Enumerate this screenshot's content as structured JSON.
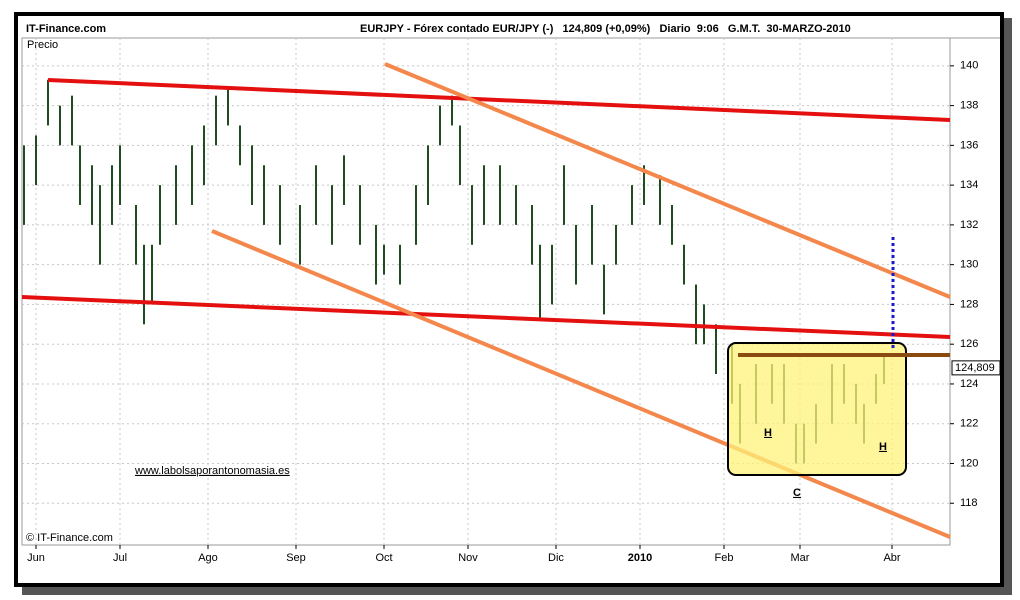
{
  "chart_data": {
    "type": "ohlc",
    "site": "IT-Finance.com",
    "title": "EURJPY - Fórex contado EUR/JPY (-)   124,809 (+0,09%)   Diario  9:06   G.M.T.  30-MARZO-2010",
    "y_label": "Precio",
    "copyright": "© IT-Finance.com",
    "watermark": "www.labolsaporantonomasia.es",
    "annotations": [
      "H",
      "H",
      "C"
    ],
    "last_price": {
      "value": 124.809,
      "label": "124,809"
    },
    "color": "#1f4d1f",
    "x": [
      -3,
      0,
      3,
      6,
      9,
      11,
      14,
      16,
      19,
      21,
      25,
      27,
      29,
      31,
      35,
      39,
      42,
      45,
      48,
      51,
      54,
      57,
      61,
      66,
      70,
      74,
      77,
      81,
      85,
      87,
      91,
      95,
      98,
      101,
      104,
      106,
      109,
      112,
      116,
      120,
      124,
      126,
      129,
      132,
      135,
      139,
      142,
      145,
      149,
      152,
      156,
      159,
      162,
      165,
      167,
      170,
      174,
      176,
      180,
      184,
      187,
      190,
      192,
      195,
      199,
      202,
      205,
      207,
      210,
      212
    ],
    "high": [
      136,
      136.5,
      139.3,
      138,
      138.5,
      136,
      135,
      134,
      135,
      136,
      133,
      131,
      131,
      134,
      135,
      136,
      137,
      138.5,
      138.8,
      137,
      136,
      135,
      134,
      133,
      135,
      134,
      135.5,
      134,
      132,
      131,
      131,
      134,
      136,
      138,
      138.5,
      137,
      134,
      135,
      135,
      134,
      133,
      131,
      131,
      135,
      132,
      133,
      130,
      132,
      134,
      135,
      134.5,
      133,
      131,
      129,
      128,
      127,
      126,
      124,
      125,
      125,
      125,
      122,
      122,
      123,
      125,
      125,
      124,
      123,
      124.5,
      125.5
    ],
    "low": [
      132,
      134,
      137,
      136,
      136,
      133,
      132,
      130,
      132,
      133,
      130,
      127,
      128,
      131,
      132,
      133,
      134,
      136,
      137,
      135,
      133,
      132,
      131,
      130,
      132,
      131,
      133,
      131,
      129,
      129.5,
      129,
      131,
      133,
      136,
      137,
      134,
      131,
      132,
      132,
      132,
      130,
      127.3,
      128,
      132,
      129,
      130,
      127.5,
      130,
      132,
      133,
      132,
      131,
      129,
      126,
      126,
      124.5,
      123,
      121,
      122,
      123,
      122,
      120,
      120,
      121,
      122,
      123,
      122,
      121,
      123,
      124
    ],
    "xlim": [
      -3.5,
      228.5
    ],
    "xticks": [
      {
        "value": 0,
        "label": "Jun"
      },
      {
        "value": 21,
        "label": "Jul"
      },
      {
        "value": 43,
        "label": "Ago"
      },
      {
        "value": 65,
        "label": "Sep"
      },
      {
        "value": 87,
        "label": "Oct"
      },
      {
        "value": 108,
        "label": "Nov"
      },
      {
        "value": 130,
        "label": "Dic"
      },
      {
        "value": 151,
        "label": "2010"
      },
      {
        "value": 172,
        "label": "Feb"
      },
      {
        "value": 191,
        "label": "Mar"
      },
      {
        "value": 214,
        "label": "Abr"
      }
    ],
    "ylim": [
      115.9,
      141.4
    ],
    "yticks": [
      118,
      120,
      122,
      124,
      126,
      128,
      130,
      132,
      134,
      136,
      138,
      140
    ],
    "grid": true
  }
}
